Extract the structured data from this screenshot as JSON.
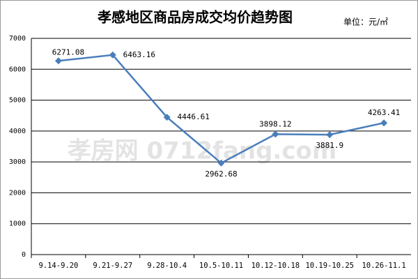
{
  "chart_data": {
    "type": "line",
    "title": "孝感地区商品房成交均价趋势图",
    "unit": "单位：元/㎡",
    "watermark": "孝房网 0712fang.com",
    "categories": [
      "9.14-9.20",
      "9.21-9.27",
      "9.28-10.4",
      "10.5-10.11",
      "10.12-10.18",
      "10.19-10.25",
      "10.26-11.1"
    ],
    "series": [
      {
        "name": "成交均价",
        "color": "#4a7ebb",
        "values": [
          6271.08,
          6463.16,
          4446.61,
          2962.68,
          3898.12,
          3881.9,
          4263.41
        ]
      }
    ],
    "ylim": [
      0,
      7000
    ],
    "yticks": [
      0,
      1000,
      2000,
      3000,
      4000,
      5000,
      6000,
      7000
    ],
    "grid": true
  }
}
